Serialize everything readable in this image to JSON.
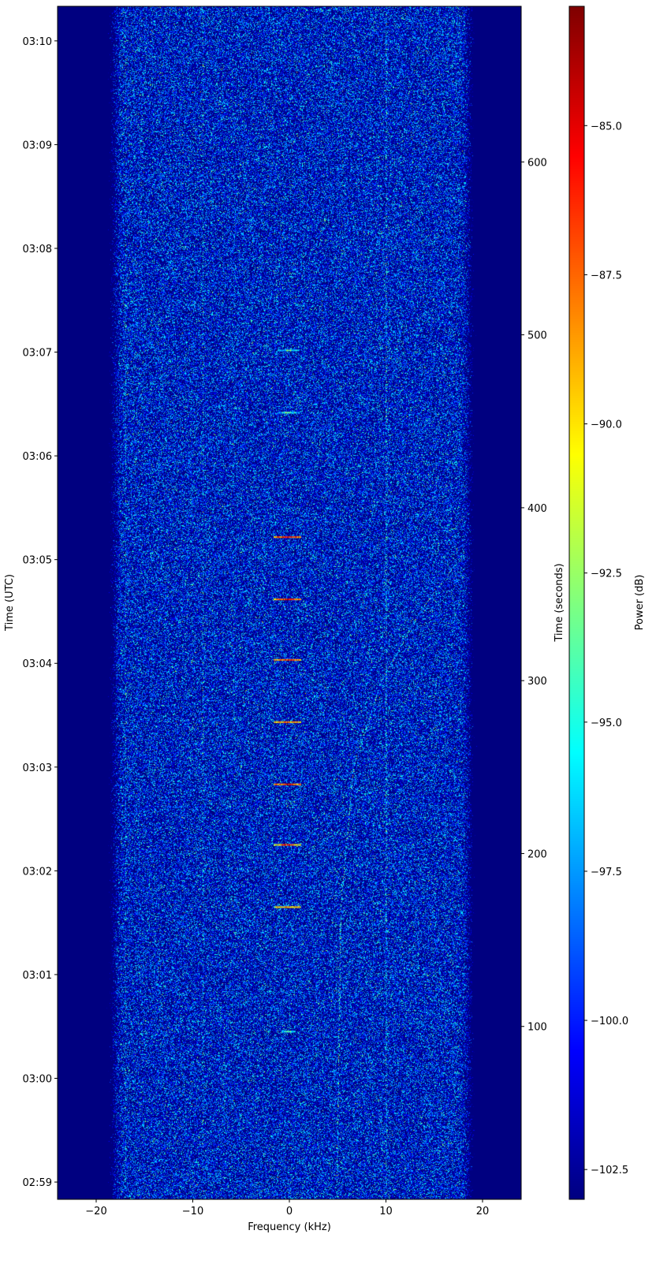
{
  "chart_data": {
    "type": "heatmap",
    "subtype": "spectrogram",
    "xlabel": "Frequency (kHz)",
    "ylabel_left": "Time (UTC)",
    "ylabel_right": "Time (seconds)",
    "colorbar_label": "Power (dB)",
    "colormap": "jet",
    "xlim": [
      -24,
      24
    ],
    "ylim_seconds": [
      0,
      690
    ],
    "clim": [
      -103,
      -83
    ],
    "x_ticks": [
      -20,
      -10,
      0,
      10,
      20
    ],
    "x_tick_labels": [
      "−20",
      "−10",
      "0",
      "10",
      "20"
    ],
    "left_ticks_seconds": [
      10,
      70,
      130,
      190,
      250,
      310,
      370,
      430,
      490,
      550,
      610,
      670
    ],
    "left_tick_labels": [
      "02:59",
      "03:00",
      "03:01",
      "03:02",
      "03:03",
      "03:04",
      "03:05",
      "03:06",
      "03:07",
      "03:08",
      "03:09",
      "03:10"
    ],
    "right_ticks": [
      100,
      200,
      300,
      400,
      500,
      600
    ],
    "right_tick_labels": [
      "100",
      "200",
      "300",
      "400",
      "500",
      "600"
    ],
    "colorbar_ticks": [
      -102.5,
      -100.0,
      -97.5,
      -95.0,
      -92.5,
      -90.0,
      -87.5,
      -85.0
    ],
    "colorbar_tick_labels": [
      "−102.5",
      "−100.0",
      "−97.5",
      "−95.0",
      "−92.5",
      "−90.0",
      "−87.5",
      "−85.0"
    ],
    "noise_floor_db": -100.5,
    "passband_khz": [
      -19,
      19
    ],
    "pulses": [
      {
        "t": 383,
        "f": [
          -1.6,
          1.2
        ],
        "db": -85
      },
      {
        "t": 347,
        "f": [
          -1.6,
          1.2
        ],
        "db": -85
      },
      {
        "t": 312,
        "f": [
          -1.6,
          1.2
        ],
        "db": -86
      },
      {
        "t": 276,
        "f": [
          -1.6,
          1.2
        ],
        "db": -87
      },
      {
        "t": 240,
        "f": [
          -1.6,
          1.2
        ],
        "db": -85
      },
      {
        "t": 205,
        "f": [
          -1.6,
          1.2
        ],
        "db": -87
      },
      {
        "t": 169,
        "f": [
          -1.6,
          1.2
        ],
        "db": -88
      },
      {
        "t": 491,
        "f": [
          -1.2,
          1.0
        ],
        "db": -94
      },
      {
        "t": 455,
        "f": [
          -1.2,
          1.0
        ],
        "db": -93
      },
      {
        "t": 97,
        "f": [
          -0.8,
          0.6
        ],
        "db": -93
      }
    ],
    "drifting_carrier": [
      {
        "t": 10,
        "f": 4.9
      },
      {
        "t": 170,
        "f": 5.3
      },
      {
        "t": 250,
        "f": 6.6
      },
      {
        "t": 300,
        "f": 9.5
      },
      {
        "t": 340,
        "f": 13.5
      },
      {
        "t": 380,
        "f": 18.8
      }
    ],
    "steady_lines_khz": [
      -17,
      -9,
      10
    ]
  }
}
